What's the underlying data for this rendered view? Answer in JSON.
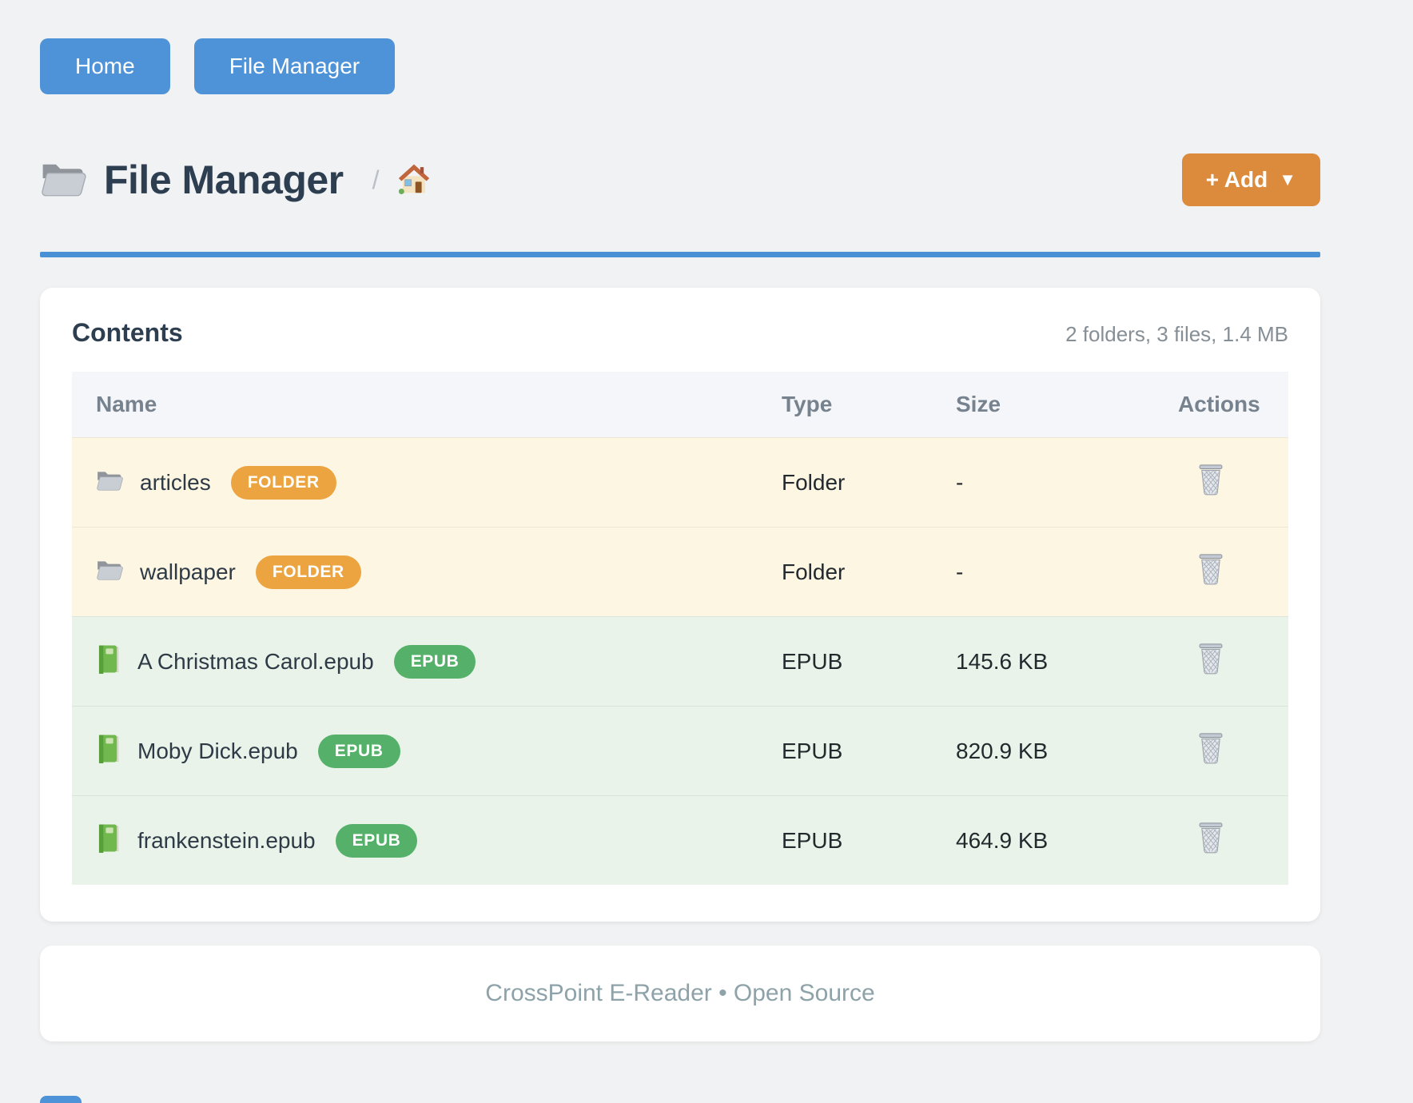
{
  "nav": {
    "home_label": "Home",
    "file_manager_label": "File Manager"
  },
  "header": {
    "title": "File Manager",
    "breadcrumb_separator": "/",
    "add_button_label": "+ Add",
    "add_button_caret": "▼"
  },
  "contents_card": {
    "title": "Contents",
    "summary": "2 folders, 3 files, 1.4 MB",
    "columns": {
      "name": "Name",
      "type": "Type",
      "size": "Size",
      "actions": "Actions"
    },
    "rows": [
      {
        "name": "articles",
        "kind": "folder",
        "badge": "FOLDER",
        "type": "Folder",
        "size": "-"
      },
      {
        "name": "wallpaper",
        "kind": "folder",
        "badge": "FOLDER",
        "type": "Folder",
        "size": "-"
      },
      {
        "name": "A Christmas Carol.epub",
        "kind": "epub",
        "badge": "EPUB",
        "type": "EPUB",
        "size": "145.6 KB"
      },
      {
        "name": "Moby Dick.epub",
        "kind": "epub",
        "badge": "EPUB",
        "type": "EPUB",
        "size": "820.9 KB"
      },
      {
        "name": "frankenstein.epub",
        "kind": "epub",
        "badge": "EPUB",
        "type": "EPUB",
        "size": "464.9 KB"
      }
    ]
  },
  "footer": {
    "text": "CrossPoint E-Reader • Open Source"
  },
  "colors": {
    "page_bg": "#f1f2f3",
    "nav_blue": "#4e93d8",
    "add_orange": "#dc8b3d",
    "rule_blue": "#4a90d5",
    "folder_badge": "#eba43f",
    "epub_badge": "#55b169",
    "folder_row_bg": "#fdf6e3",
    "epub_row_bg": "#e9f3e9"
  }
}
